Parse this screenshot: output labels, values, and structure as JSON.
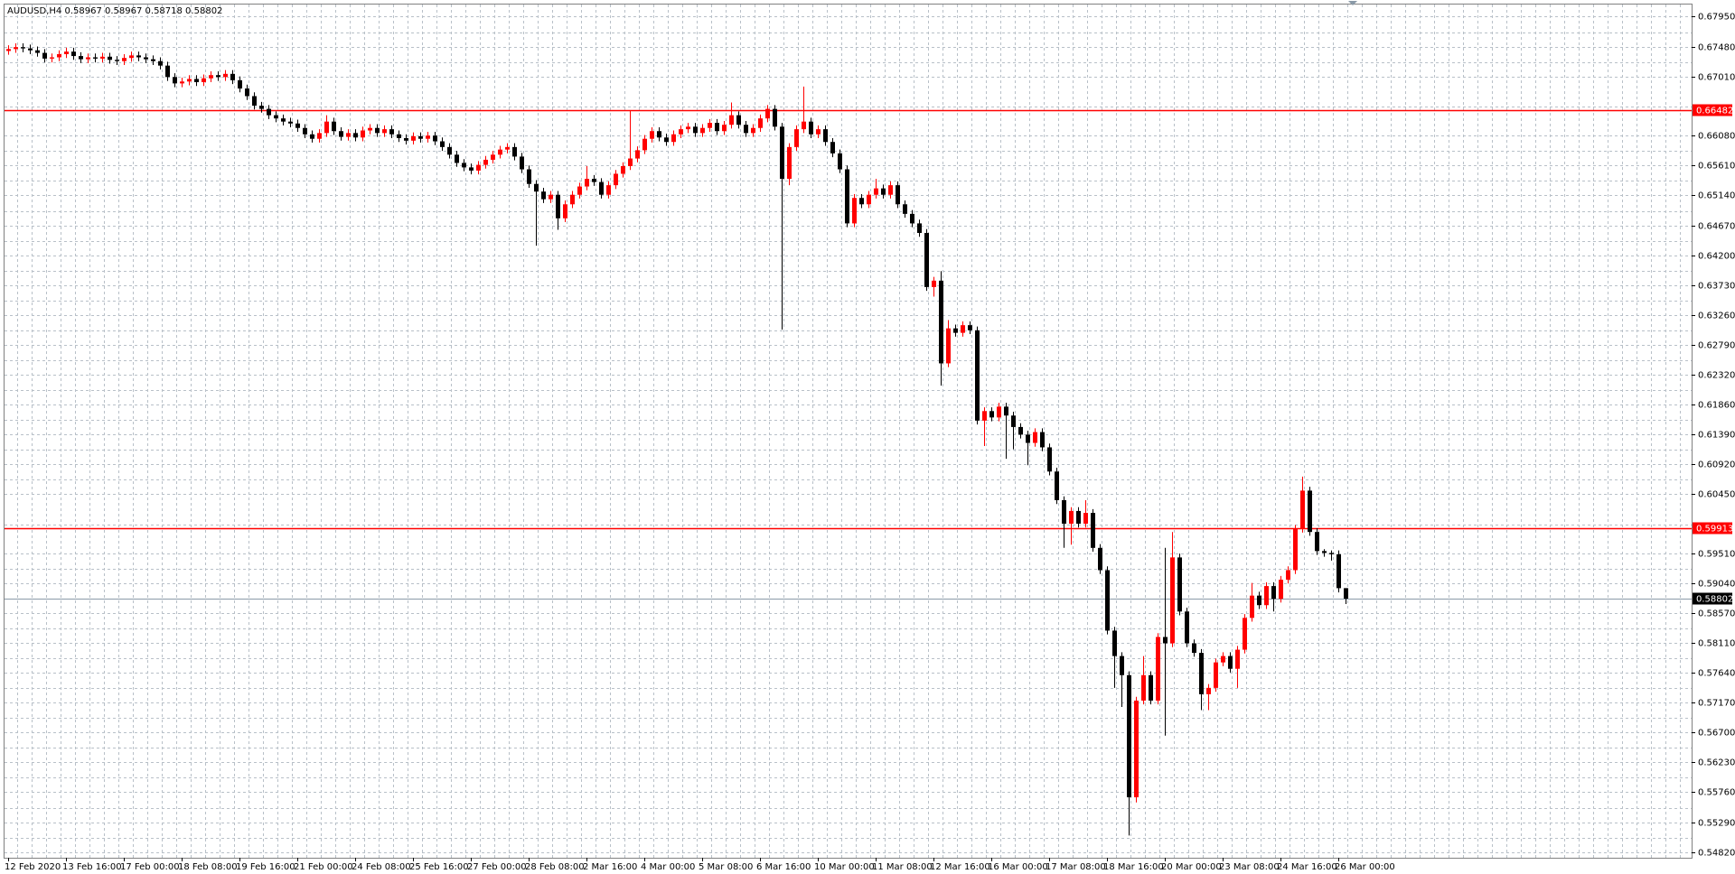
{
  "chart_data": {
    "type": "candlestick",
    "title": "AUDUSD,H4  0.58967 0.58967 0.58718 0.58802",
    "categories": [
      "12 Feb 2020",
      null,
      null,
      null,
      null,
      null,
      null,
      null,
      "13 Feb 16:00",
      null,
      null,
      null,
      null,
      null,
      null,
      null,
      "17 Feb 00:00",
      null,
      null,
      null,
      null,
      null,
      null,
      null,
      "18 Feb 08:00",
      null,
      null,
      null,
      null,
      null,
      null,
      null,
      "19 Feb 16:00",
      null,
      null,
      null,
      null,
      null,
      null,
      null,
      "21 Feb 00:00",
      null,
      null,
      null,
      null,
      null,
      null,
      null,
      "24 Feb 08:00",
      null,
      null,
      null,
      null,
      null,
      null,
      null,
      "25 Feb 16:00",
      null,
      null,
      null,
      null,
      null,
      null,
      null,
      "27 Feb 00:00",
      null,
      null,
      null,
      null,
      null,
      null,
      null,
      "28 Feb 08:00",
      null,
      null,
      null,
      null,
      null,
      null,
      null,
      "2 Mar 16:00",
      null,
      null,
      null,
      null,
      null,
      null,
      null,
      "4 Mar 00:00",
      null,
      null,
      null,
      null,
      null,
      null,
      null,
      "5 Mar 08:00",
      null,
      null,
      null,
      null,
      null,
      null,
      null,
      "6 Mar 16:00",
      null,
      null,
      null,
      null,
      null,
      null,
      null,
      "10 Mar 00:00",
      null,
      null,
      null,
      null,
      null,
      null,
      null,
      "11 Mar 08:00",
      null,
      null,
      null,
      null,
      null,
      null,
      null,
      "12 Mar 16:00",
      null,
      null,
      null,
      null,
      null,
      null,
      null,
      "16 Mar 00:00",
      null,
      null,
      null,
      null,
      null,
      null,
      null,
      "17 Mar 08:00",
      null,
      null,
      null,
      null,
      null,
      null,
      null,
      "18 Mar 16:00",
      null,
      null,
      null,
      null,
      null,
      null,
      null,
      "20 Mar 00:00",
      null,
      null,
      null,
      null,
      null,
      null,
      null,
      "23 Mar 08:00",
      null,
      null,
      null,
      null,
      null,
      null,
      null,
      "24 Mar 16:00",
      null,
      null,
      null,
      null,
      null,
      null,
      null,
      "26 Mar 00:00",
      null
    ],
    "open": [
      0.6741,
      0.6744,
      0.6747,
      0.6745,
      0.6742,
      0.6738,
      0.6729,
      0.6731,
      0.6736,
      0.674,
      0.6733,
      0.6728,
      0.6731,
      0.6729,
      0.6732,
      0.6727,
      0.6725,
      0.673,
      0.6734,
      0.6731,
      0.6728,
      0.6725,
      0.6718,
      0.67,
      0.669,
      0.6693,
      0.6697,
      0.6692,
      0.6698,
      0.6703,
      0.67,
      0.6705,
      0.6695,
      0.6682,
      0.667,
      0.6655,
      0.665,
      0.664,
      0.6635,
      0.663,
      0.6627,
      0.662,
      0.661,
      0.6603,
      0.6612,
      0.663,
      0.6615,
      0.6606,
      0.6612,
      0.6605,
      0.6616,
      0.662,
      0.6612,
      0.6618,
      0.661,
      0.6604,
      0.66,
      0.6607,
      0.6603,
      0.6608,
      0.6599,
      0.659,
      0.6578,
      0.6565,
      0.6558,
      0.6553,
      0.6562,
      0.657,
      0.6578,
      0.6586,
      0.659,
      0.6575,
      0.6555,
      0.6532,
      0.652,
      0.6508,
      0.6515,
      0.6478,
      0.65,
      0.6515,
      0.6528,
      0.654,
      0.6535,
      0.6515,
      0.653,
      0.6548,
      0.656,
      0.6572,
      0.6585,
      0.6603,
      0.6615,
      0.6605,
      0.6598,
      0.661,
      0.6618,
      0.6622,
      0.6612,
      0.662,
      0.6628,
      0.6615,
      0.6625,
      0.664,
      0.6625,
      0.6612,
      0.662,
      0.6635,
      0.665,
      0.6622,
      0.654,
      0.659,
      0.6618,
      0.663,
      0.661,
      0.6618,
      0.6598,
      0.658,
      0.6555,
      0.647,
      0.651,
      0.65,
      0.6515,
      0.6525,
      0.6515,
      0.653,
      0.65,
      0.6485,
      0.647,
      0.6455,
      0.637,
      0.638,
      0.625,
      0.6305,
      0.6298,
      0.631,
      0.6302,
      0.616,
      0.6175,
      0.6165,
      0.6182,
      0.6168,
      0.615,
      0.6138,
      0.6125,
      0.6142,
      0.6118,
      0.608,
      0.6035,
      0.5998,
      0.6018,
      0.5998,
      0.6015,
      0.596,
      0.5925,
      0.583,
      0.579,
      0.576,
      0.5568,
      0.572,
      0.576,
      0.572,
      0.582,
      0.581,
      0.5945,
      0.586,
      0.581,
      0.5795,
      0.573,
      0.574,
      0.578,
      0.579,
      0.577,
      0.58,
      0.585,
      0.5885,
      0.587,
      0.59,
      0.588,
      0.591,
      0.5925,
      0.599,
      0.605,
      0.5985,
      0.5955,
      0.5952,
      0.595,
      0.58967
    ],
    "high": [
      0.675,
      0.6753,
      0.6753,
      0.6751,
      0.6748,
      0.6744,
      0.6737,
      0.6742,
      0.6746,
      0.6746,
      0.6739,
      0.6737,
      0.6737,
      0.6738,
      0.6738,
      0.6733,
      0.6736,
      0.674,
      0.674,
      0.6737,
      0.6734,
      0.6731,
      0.6724,
      0.6706,
      0.6699,
      0.6703,
      0.6703,
      0.6704,
      0.6709,
      0.6709,
      0.6711,
      0.6711,
      0.6701,
      0.6688,
      0.6676,
      0.6661,
      0.6656,
      0.6646,
      0.6641,
      0.6636,
      0.6633,
      0.6626,
      0.6616,
      0.6618,
      0.664,
      0.6636,
      0.6621,
      0.6618,
      0.6618,
      0.6622,
      0.6626,
      0.6626,
      0.6624,
      0.6624,
      0.6616,
      0.661,
      0.6613,
      0.6613,
      0.6614,
      0.6614,
      0.6605,
      0.6596,
      0.6584,
      0.6571,
      0.6564,
      0.6568,
      0.6576,
      0.6584,
      0.6592,
      0.6596,
      0.6596,
      0.6581,
      0.6561,
      0.6538,
      0.6526,
      0.6521,
      0.6521,
      0.6506,
      0.6521,
      0.6534,
      0.656,
      0.6546,
      0.6541,
      0.6536,
      0.6554,
      0.6566,
      0.6648,
      0.6591,
      0.6609,
      0.6621,
      0.6621,
      0.6611,
      0.6616,
      0.6624,
      0.6628,
      0.6628,
      0.6626,
      0.6634,
      0.6634,
      0.6631,
      0.666,
      0.6646,
      0.6631,
      0.6626,
      0.6641,
      0.6656,
      0.6656,
      0.6628,
      0.6596,
      0.6624,
      0.6685,
      0.6636,
      0.6624,
      0.6624,
      0.6604,
      0.6586,
      0.6561,
      0.6516,
      0.6516,
      0.6521,
      0.654,
      0.6531,
      0.6536,
      0.6536,
      0.6506,
      0.6491,
      0.6476,
      0.6461,
      0.6386,
      0.6395,
      0.6318,
      0.6311,
      0.6316,
      0.6316,
      0.6308,
      0.6181,
      0.6181,
      0.6188,
      0.6188,
      0.6174,
      0.6156,
      0.6144,
      0.6148,
      0.6148,
      0.6124,
      0.6086,
      0.6041,
      0.6024,
      0.6024,
      0.6035,
      0.6021,
      0.5966,
      0.5931,
      0.5836,
      0.5796,
      0.5766,
      0.5726,
      0.579,
      0.5766,
      0.5826,
      0.596,
      0.5985,
      0.5951,
      0.5866,
      0.5816,
      0.5801,
      0.5746,
      0.5786,
      0.5796,
      0.5796,
      0.5806,
      0.5856,
      0.5905,
      0.5891,
      0.5906,
      0.5906,
      0.5916,
      0.5931,
      0.5996,
      0.6072,
      0.6056,
      0.5991,
      0.5958,
      0.5956,
      0.5956,
      0.58967
    ],
    "low": [
      0.6735,
      0.6738,
      0.6739,
      0.6736,
      0.6732,
      0.6723,
      0.6723,
      0.6725,
      0.673,
      0.6727,
      0.6722,
      0.6722,
      0.6723,
      0.6723,
      0.6721,
      0.6719,
      0.6719,
      0.6724,
      0.6725,
      0.6722,
      0.6719,
      0.6712,
      0.6694,
      0.6684,
      0.6684,
      0.6687,
      0.6686,
      0.6686,
      0.6692,
      0.6694,
      0.6694,
      0.6689,
      0.6676,
      0.6664,
      0.6649,
      0.6644,
      0.6634,
      0.6629,
      0.6624,
      0.6621,
      0.6614,
      0.6604,
      0.6597,
      0.6597,
      0.6606,
      0.6609,
      0.66,
      0.66,
      0.6599,
      0.6599,
      0.661,
      0.6606,
      0.6606,
      0.6604,
      0.6598,
      0.6594,
      0.6594,
      0.6597,
      0.6597,
      0.6593,
      0.6584,
      0.6572,
      0.6559,
      0.6552,
      0.6547,
      0.6547,
      0.6556,
      0.6564,
      0.6572,
      0.658,
      0.6569,
      0.6549,
      0.6526,
      0.6435,
      0.6502,
      0.6502,
      0.646,
      0.6472,
      0.6494,
      0.6509,
      0.6522,
      0.6529,
      0.6509,
      0.6509,
      0.6524,
      0.6542,
      0.6554,
      0.6566,
      0.6579,
      0.6597,
      0.6599,
      0.6592,
      0.6592,
      0.6604,
      0.6612,
      0.6606,
      0.6606,
      0.6614,
      0.6609,
      0.6609,
      0.6619,
      0.6619,
      0.6606,
      0.6606,
      0.6614,
      0.6629,
      0.6616,
      0.6303,
      0.653,
      0.6584,
      0.6612,
      0.6604,
      0.6604,
      0.6592,
      0.6574,
      0.6549,
      0.6464,
      0.6464,
      0.6494,
      0.6494,
      0.6509,
      0.6509,
      0.6509,
      0.6494,
      0.6479,
      0.6464,
      0.6449,
      0.6364,
      0.6355,
      0.6215,
      0.6244,
      0.6292,
      0.6292,
      0.6296,
      0.6154,
      0.612,
      0.6159,
      0.6159,
      0.61,
      0.6115,
      0.6132,
      0.609,
      0.6119,
      0.6112,
      0.6074,
      0.6029,
      0.596,
      0.5965,
      0.5992,
      0.5992,
      0.5954,
      0.5919,
      0.5824,
      0.574,
      0.571,
      0.5508,
      0.556,
      0.5714,
      0.5714,
      0.5714,
      0.5665,
      0.5804,
      0.5854,
      0.5804,
      0.5789,
      0.5705,
      0.5705,
      0.5734,
      0.5774,
      0.5764,
      0.574,
      0.5794,
      0.5844,
      0.5864,
      0.5864,
      0.586,
      0.5874,
      0.5904,
      0.5919,
      0.5984,
      0.5979,
      0.5949,
      0.5946,
      0.594,
      0.589,
      0.58718
    ],
    "close": [
      0.6744,
      0.6747,
      0.6745,
      0.6742,
      0.6738,
      0.6729,
      0.6731,
      0.6736,
      0.674,
      0.6733,
      0.6728,
      0.6731,
      0.6729,
      0.6732,
      0.6727,
      0.6725,
      0.673,
      0.6734,
      0.6731,
      0.6728,
      0.6725,
      0.6718,
      0.67,
      0.669,
      0.6693,
      0.6697,
      0.6692,
      0.6698,
      0.6703,
      0.67,
      0.6705,
      0.6695,
      0.6682,
      0.667,
      0.6655,
      0.665,
      0.664,
      0.6635,
      0.663,
      0.6627,
      0.662,
      0.661,
      0.6603,
      0.6612,
      0.663,
      0.6615,
      0.6606,
      0.6612,
      0.6605,
      0.6616,
      0.662,
      0.6612,
      0.6618,
      0.661,
      0.6604,
      0.66,
      0.6607,
      0.6603,
      0.6608,
      0.6599,
      0.659,
      0.6578,
      0.6565,
      0.6558,
      0.6553,
      0.6562,
      0.657,
      0.6578,
      0.6586,
      0.659,
      0.6575,
      0.6555,
      0.6532,
      0.652,
      0.6508,
      0.6515,
      0.6478,
      0.65,
      0.6515,
      0.6528,
      0.654,
      0.6535,
      0.6515,
      0.653,
      0.6548,
      0.656,
      0.6572,
      0.6585,
      0.6603,
      0.6615,
      0.6605,
      0.6598,
      0.661,
      0.6618,
      0.6622,
      0.6612,
      0.662,
      0.6628,
      0.6615,
      0.6625,
      0.664,
      0.6625,
      0.6612,
      0.662,
      0.6635,
      0.665,
      0.6622,
      0.654,
      0.659,
      0.6618,
      0.663,
      0.661,
      0.6618,
      0.6598,
      0.658,
      0.6555,
      0.647,
      0.651,
      0.65,
      0.6515,
      0.6525,
      0.6515,
      0.653,
      0.65,
      0.6485,
      0.647,
      0.6455,
      0.637,
      0.638,
      0.625,
      0.6305,
      0.6298,
      0.631,
      0.6302,
      0.616,
      0.6175,
      0.6165,
      0.6182,
      0.6168,
      0.615,
      0.6138,
      0.6125,
      0.6142,
      0.6118,
      0.608,
      0.6035,
      0.5998,
      0.6018,
      0.5998,
      0.6015,
      0.596,
      0.5925,
      0.583,
      0.579,
      0.576,
      0.5568,
      0.572,
      0.576,
      0.572,
      0.582,
      0.581,
      0.5945,
      0.586,
      0.581,
      0.5795,
      0.573,
      0.574,
      0.578,
      0.579,
      0.577,
      0.58,
      0.585,
      0.5885,
      0.587,
      0.59,
      0.588,
      0.591,
      0.5925,
      0.599,
      0.605,
      0.5985,
      0.5955,
      0.5952,
      0.595,
      0.58967,
      0.58802
    ],
    "up_color": "#ff0000",
    "down_color": "#000000",
    "ylim": [
      0.5473,
      0.6814
    ],
    "yticks": [
      {
        "value": 0.6795,
        "label": "0.67950"
      },
      {
        "value": 0.6748,
        "label": "0.67480"
      },
      {
        "value": 0.6701,
        "label": "0.67010"
      },
      {
        "value": 0.6608,
        "label": "0.66080"
      },
      {
        "value": 0.6561,
        "label": "0.65610"
      },
      {
        "value": 0.6514,
        "label": "0.65140"
      },
      {
        "value": 0.6467,
        "label": "0.64670"
      },
      {
        "value": 0.642,
        "label": "0.64200"
      },
      {
        "value": 0.6373,
        "label": "0.63730"
      },
      {
        "value": 0.6326,
        "label": "0.63260"
      },
      {
        "value": 0.6279,
        "label": "0.62790"
      },
      {
        "value": 0.6232,
        "label": "0.62320"
      },
      {
        "value": 0.6186,
        "label": "0.61860"
      },
      {
        "value": 0.6139,
        "label": "0.61390"
      },
      {
        "value": 0.6092,
        "label": "0.60920"
      },
      {
        "value": 0.6045,
        "label": "0.60450"
      },
      {
        "value": 0.5951,
        "label": "0.59510"
      },
      {
        "value": 0.5904,
        "label": "0.59040"
      },
      {
        "value": 0.5857,
        "label": "0.58570"
      },
      {
        "value": 0.5811,
        "label": "0.58110"
      },
      {
        "value": 0.5764,
        "label": "0.57640"
      },
      {
        "value": 0.5717,
        "label": "0.57170"
      },
      {
        "value": 0.567,
        "label": "0.56700"
      },
      {
        "value": 0.5623,
        "label": "0.56230"
      },
      {
        "value": 0.5576,
        "label": "0.55760"
      },
      {
        "value": 0.5529,
        "label": "0.55290"
      },
      {
        "value": 0.5482,
        "label": "0.54820"
      }
    ],
    "grid": true,
    "hlines": [
      {
        "value": 0.66482,
        "color": "#ff0000"
      },
      {
        "value": 0.59913,
        "color": "#ff0000"
      }
    ],
    "bid": {
      "value": 0.58802,
      "color": "#000000"
    }
  }
}
